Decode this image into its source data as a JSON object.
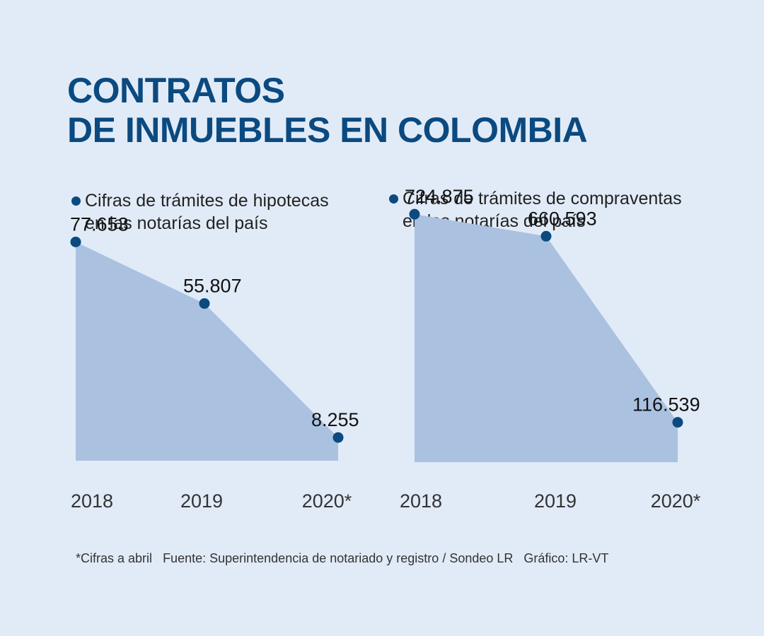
{
  "title": {
    "line1": "CONTRATOS",
    "line2": "DE INMUEBLES EN COLOMBIA"
  },
  "colors": {
    "area": "#abc1e0",
    "dot": "#0b4a80",
    "title": "#0b4a80",
    "background": "#e1ebf7"
  },
  "chart_data": [
    {
      "type": "area",
      "subtitle": [
        "Cifras de trámites de hipotecas",
        "en las notarías del país"
      ],
      "categories": [
        "2018",
        "2019",
        "2020*"
      ],
      "values": [
        77653,
        55807,
        8255
      ],
      "labels": [
        "77.653",
        "55.807",
        "8.255"
      ],
      "ylim": [
        0,
        80000
      ]
    },
    {
      "type": "area",
      "subtitle": [
        "Cifras de trámites de compraventas",
        "en las notarías del país"
      ],
      "categories": [
        "2018",
        "2019",
        "2020*"
      ],
      "values": [
        724875,
        660593,
        116539
      ],
      "labels": [
        "724.875",
        "660.593",
        "116.539"
      ],
      "ylim": [
        0,
        1000000
      ]
    }
  ],
  "footer": {
    "note": "*Cifras a abril",
    "source": "Fuente: Superintendencia de notariado y registro / Sondeo LR",
    "credit": "Gráfico: LR-VT"
  }
}
